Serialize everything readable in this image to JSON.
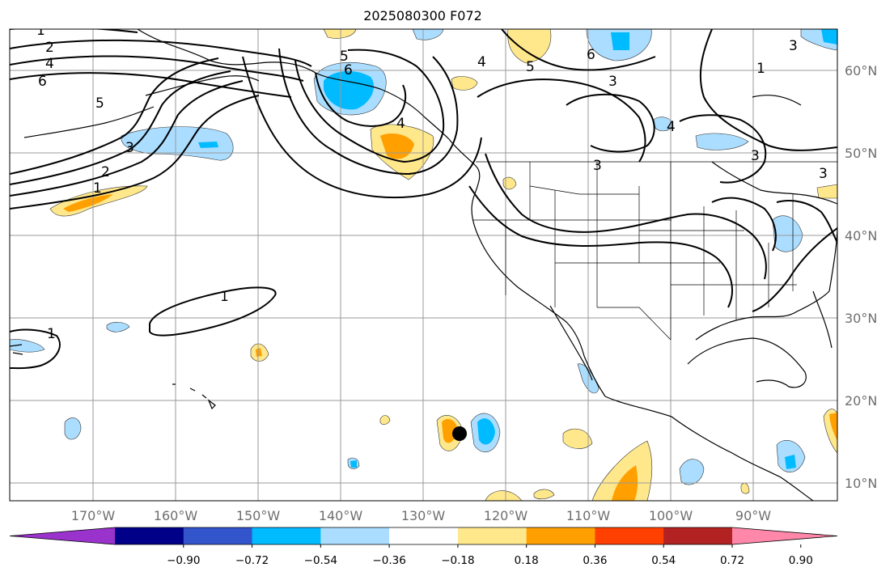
{
  "title": "2025080300 F072",
  "longitude_labels": [
    "170°W",
    "160°W",
    "150°W",
    "140°W",
    "130°W",
    "120°W",
    "110°W",
    "100°W",
    "90°W"
  ],
  "latitude_labels": [
    "60°N",
    "50°N",
    "40°N",
    "30°N",
    "20°N",
    "10°N"
  ],
  "colorbar": {
    "tick_labels": [
      "−0.90",
      "−0.72",
      "−0.54",
      "−0.36",
      "−0.18",
      "0.18",
      "0.36",
      "0.54",
      "0.72",
      "0.90"
    ],
    "colors": [
      "#9933cc",
      "#000088",
      "#3355cc",
      "#00bbff",
      "#aaddff",
      "#ffffff",
      "#ffe88c",
      "#ffa000",
      "#ff4000",
      "#b22222",
      "#ff88aa"
    ]
  },
  "contour_labels": [
    "1",
    "2",
    "4",
    "6",
    "5",
    "3",
    "2",
    "1",
    "6",
    "5",
    "4",
    "4",
    "5",
    "6",
    "3",
    "1",
    "3",
    "3",
    "4",
    "3",
    "3",
    "1",
    "1"
  ],
  "marker": {
    "name": "center",
    "color": "#000000"
  }
}
